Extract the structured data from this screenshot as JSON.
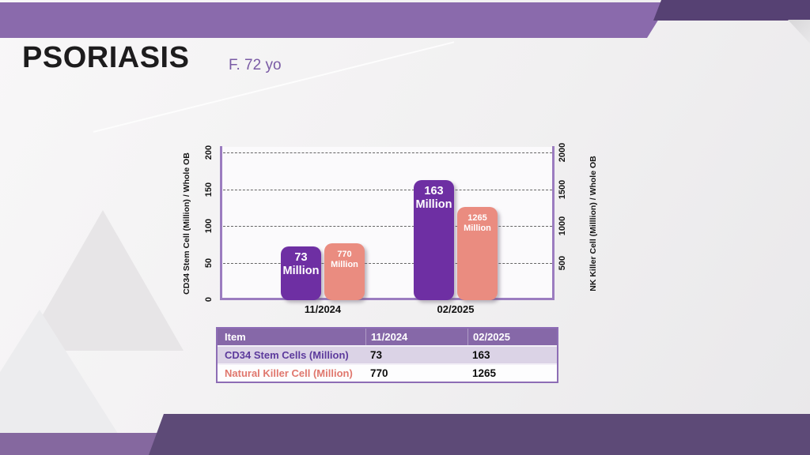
{
  "slide": {
    "title": "PSORIASIS",
    "subtitle": "F. 72 yo"
  },
  "colors": {
    "band_light": "#8A6AAC",
    "band_dark": "#564173",
    "footer_light": "#85689F",
    "footer_dark": "#5D4A77",
    "axis_line": "#9B7CC0",
    "bar_purple": "#6E2FA3",
    "bar_salmon": "#EA8C80",
    "table_header_bg": "#8668A8",
    "table_row_alt_bg": "#DBD3E6",
    "table_border": "#8D6DB5",
    "label_purple": "#5C3A9C",
    "label_salmon": "#E0776D",
    "subtitle_purple": "#7A5BA5"
  },
  "chart_data": {
    "type": "bar",
    "title": "",
    "categories": [
      "11/2024",
      "02/2025"
    ],
    "series": [
      {
        "name": "CD34 Stem Cells (Million)",
        "axis": "left",
        "color": "#6E2FA3",
        "values": [
          73,
          163
        ],
        "bar_labels": [
          [
            "73",
            "Million"
          ],
          [
            "163",
            "Million"
          ]
        ]
      },
      {
        "name": "Natural Killer Cell (Million)",
        "axis": "right",
        "color": "#EA8C80",
        "values": [
          770,
          1265
        ],
        "bar_labels": [
          [
            "770",
            "Million"
          ],
          [
            "1265",
            "Million"
          ]
        ]
      }
    ],
    "left_axis": {
      "title": "CD34 Stem Cell (Million) / Whole OB",
      "ticks": [
        0,
        50,
        100,
        150,
        200
      ],
      "max": 200
    },
    "right_axis": {
      "title": "NK Killer Cell (Milllion) / Whole OB",
      "ticks": [
        500,
        1000,
        1500,
        2000
      ],
      "max": 2000
    },
    "gridlines": {
      "values": [
        50,
        100,
        150,
        200
      ],
      "style": "dashed"
    },
    "legend": "none"
  },
  "table": {
    "headers": [
      "Item",
      "11/2024",
      "02/2025"
    ],
    "rows": [
      {
        "label": "CD34 Stem Cells (Million)",
        "values": [
          "73",
          "163"
        ],
        "label_color": "#5C3A9C"
      },
      {
        "label": "Natural Killer Cell (Million)",
        "values": [
          "770",
          "1265"
        ],
        "label_color": "#E0776D"
      }
    ]
  }
}
